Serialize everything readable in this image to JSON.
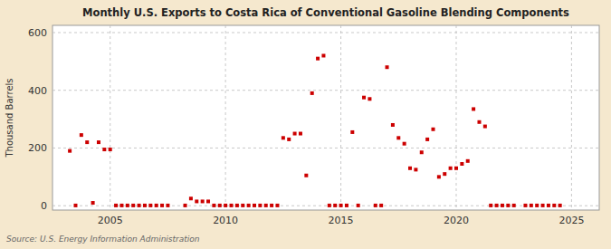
{
  "chart_data": {
    "type": "scatter",
    "title": "Monthly U.S. Exports to Costa Rica of Conventional Gasoline Blending Components",
    "y_label": "Thousand Barrels",
    "annotations": [
      "Source: U.S. Energy Information Administration"
    ],
    "color": "#cc0000",
    "marker": "square",
    "grid": true,
    "xlim": [
      2002.5,
      2026.2
    ],
    "ylim": [
      -15,
      625
    ],
    "xticks": [
      2005,
      2010,
      2015,
      2020,
      2025
    ],
    "yticks": [
      0,
      200,
      400,
      600
    ],
    "x": [
      2003.25,
      2003.5,
      2003.75,
      2004.0,
      2004.25,
      2004.5,
      2004.75,
      2005.0,
      2005.25,
      2005.5,
      2005.75,
      2006.0,
      2006.25,
      2006.5,
      2006.75,
      2007.0,
      2007.25,
      2007.5,
      2008.25,
      2008.5,
      2008.75,
      2009.0,
      2009.25,
      2009.5,
      2009.75,
      2010.0,
      2010.25,
      2010.5,
      2010.75,
      2011.0,
      2011.25,
      2011.5,
      2011.75,
      2012.0,
      2012.25,
      2012.5,
      2012.75,
      2013.0,
      2013.25,
      2013.5,
      2013.75,
      2014.0,
      2014.25,
      2014.5,
      2014.75,
      2015.0,
      2015.25,
      2015.5,
      2015.75,
      2016.0,
      2016.25,
      2016.5,
      2016.75,
      2017.0,
      2017.25,
      2017.5,
      2017.75,
      2018.0,
      2018.25,
      2018.5,
      2018.75,
      2019.0,
      2019.25,
      2019.5,
      2019.75,
      2020.0,
      2020.25,
      2020.5,
      2020.75,
      2021.0,
      2021.25,
      2021.5,
      2021.75,
      2022.0,
      2022.25,
      2022.5,
      2023.0,
      2023.25,
      2023.5,
      2023.75,
      2024.0,
      2024.25,
      2024.5
    ],
    "values": [
      190,
      1,
      245,
      220,
      10,
      220,
      195,
      195,
      1,
      1,
      1,
      1,
      1,
      1,
      1,
      1,
      1,
      1,
      1,
      25,
      15,
      15,
      15,
      1,
      1,
      1,
      1,
      1,
      1,
      1,
      1,
      1,
      1,
      1,
      1,
      235,
      230,
      250,
      250,
      105,
      390,
      510,
      520,
      1,
      1,
      1,
      1,
      255,
      1,
      375,
      370,
      1,
      1,
      480,
      280,
      235,
      215,
      130,
      125,
      185,
      230,
      265,
      100,
      110,
      130,
      130,
      145,
      155,
      335,
      290,
      275,
      1,
      1,
      1,
      1,
      1,
      1,
      1,
      1,
      1,
      1,
      1,
      1
    ]
  }
}
